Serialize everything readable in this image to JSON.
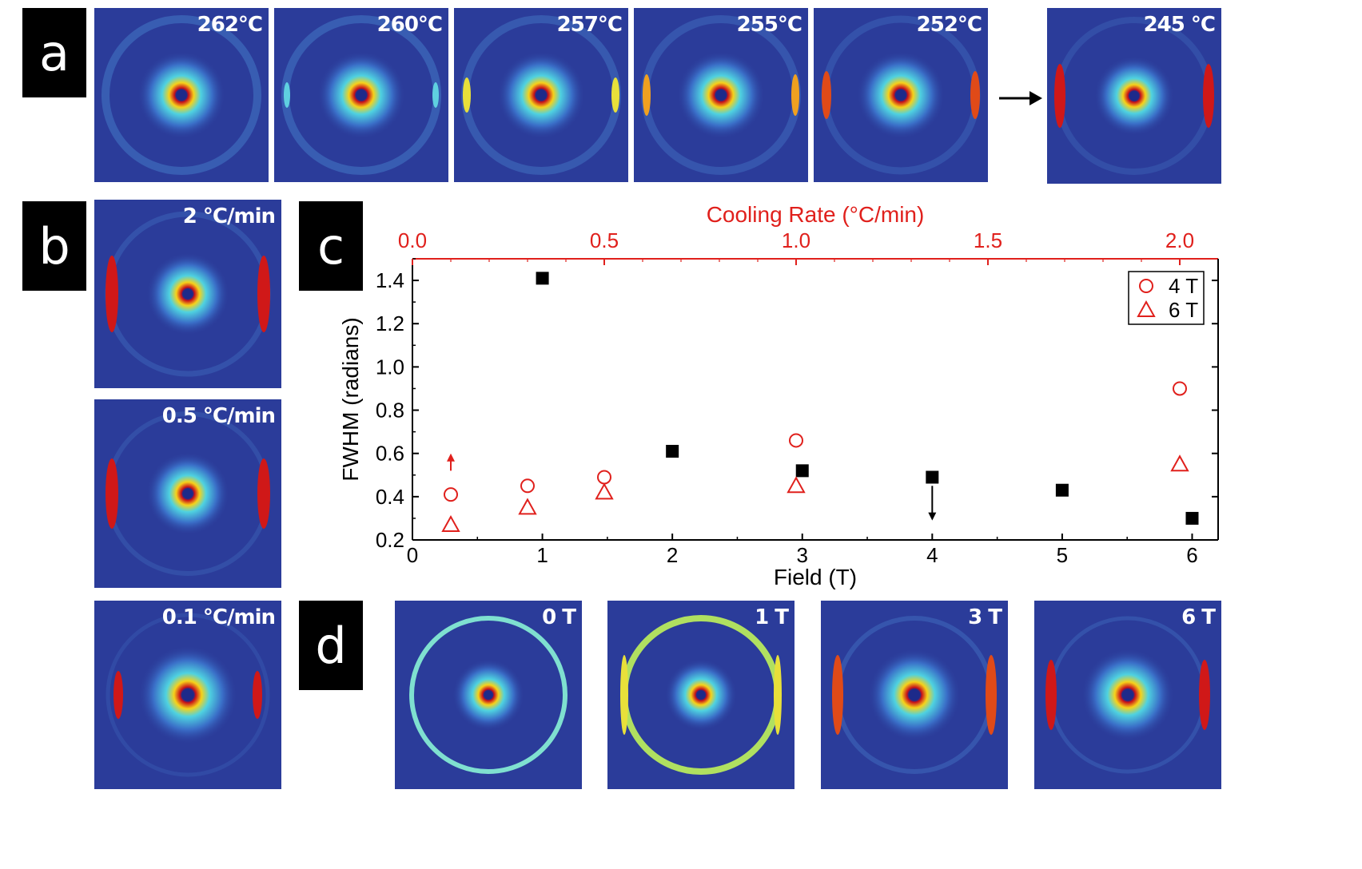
{
  "panels": {
    "a": {
      "label": "a",
      "patterns": [
        "262°C",
        "260°C",
        "257°C",
        "255°C",
        "252°C",
        "245 °C"
      ]
    },
    "b": {
      "label": "b",
      "patterns": [
        "2 °C/min",
        "0.5 °C/min",
        "0.1 °C/min"
      ]
    },
    "c": {
      "label": "c"
    },
    "d": {
      "label": "d",
      "patterns": [
        "0 T",
        "1 T",
        "3 T",
        "6 T"
      ]
    }
  },
  "colors": {
    "bg": "#2b3c9a",
    "red": "#e0201c",
    "black": "#000000"
  },
  "chart_data": {
    "type": "scatter",
    "xlabel": "Field (T)",
    "ylabel": "FWHM (radians)",
    "x2label": "Cooling Rate (°C/min)",
    "xlim": [
      0,
      6.2
    ],
    "ylim": [
      0.2,
      1.5
    ],
    "x2lim": [
      0,
      2.1
    ],
    "xticks": [
      "0",
      "1",
      "2",
      "3",
      "4",
      "5",
      "6"
    ],
    "yticks": [
      "0.2",
      "0.4",
      "0.6",
      "0.8",
      "1.0",
      "1.2",
      "1.4"
    ],
    "x2ticks": [
      "0.0",
      "0.5",
      "1.0",
      "1.5",
      "2.0"
    ],
    "legend": [
      {
        "name": "4 T",
        "marker": "circle"
      },
      {
        "name": "6 T",
        "marker": "triangle"
      }
    ],
    "series": [
      {
        "name": "Field (T)",
        "marker": "square",
        "color": "#000000",
        "x": [
          1,
          2,
          3,
          4,
          5,
          6
        ],
        "y": [
          1.41,
          0.61,
          0.52,
          0.49,
          0.43,
          0.3
        ]
      },
      {
        "name": "4 T",
        "marker": "circle",
        "color": "#e0201c",
        "x": [
          0.1,
          0.3,
          0.5,
          1.0,
          2.0
        ],
        "y": [
          0.41,
          0.45,
          0.49,
          0.66,
          0.9
        ]
      },
      {
        "name": "6 T",
        "marker": "triangle",
        "color": "#e0201c",
        "x": [
          0.1,
          0.3,
          0.5,
          1.0,
          2.0
        ],
        "y": [
          0.27,
          0.35,
          0.42,
          0.45,
          0.55
        ]
      }
    ],
    "arrows": [
      {
        "axis": "x2",
        "x": 0.1,
        "y_from": 0.52,
        "y_to": 0.6,
        "direction": "up",
        "color": "#e0201c"
      },
      {
        "axis": "x",
        "x": 4,
        "y_from": 0.45,
        "y_to": 0.29,
        "direction": "down",
        "color": "#000000"
      }
    ]
  }
}
